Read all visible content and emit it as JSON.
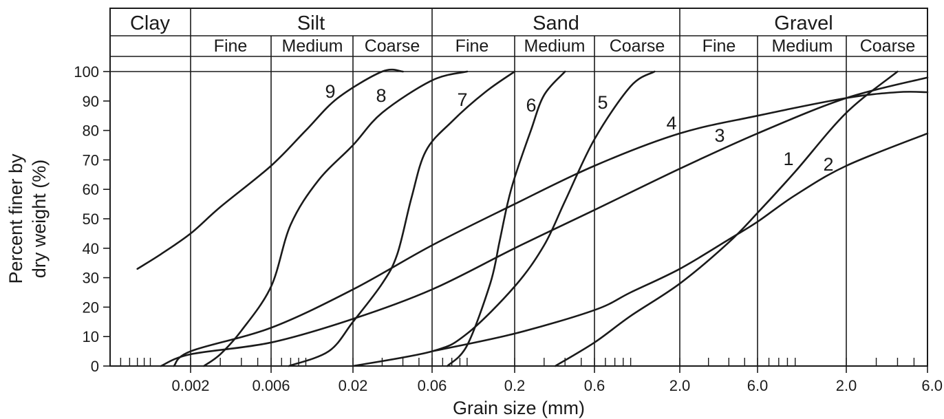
{
  "chart_data": {
    "type": "line",
    "title": "",
    "xlabel": "Grain size (mm)",
    "ylabel_lines": [
      "Percent finer by",
      "dry weight (%)"
    ],
    "y_ticks": [
      "0",
      "10",
      "20",
      "30",
      "40",
      "50",
      "60",
      "70",
      "80",
      "90",
      "100"
    ],
    "ylim": [
      0,
      100
    ],
    "x_ticks": [
      "0.002",
      "0.006",
      "0.02",
      "0.06",
      "0.2",
      "0.6",
      "2.0",
      "6.0",
      "2.0",
      "6.0"
    ],
    "header": {
      "classes": [
        "Clay",
        "Silt",
        "Sand",
        "Gravel"
      ],
      "subclasses": [
        "Fine",
        "Medium",
        "Coarse",
        "Fine",
        "Medium",
        "Coarse",
        "Fine",
        "Medium",
        "Coarse"
      ]
    },
    "series": [
      {
        "name": "1",
        "points": [
          [
            0.35,
            0
          ],
          [
            0.6,
            8
          ],
          [
            1.0,
            17
          ],
          [
            2.0,
            28
          ],
          [
            4.0,
            42
          ],
          [
            6.0,
            52
          ],
          [
            10,
            66
          ],
          [
            20,
            86
          ],
          [
            40,
            100
          ]
        ]
      },
      {
        "name": "2",
        "points": [
          [
            0.06,
            5
          ],
          [
            0.2,
            11
          ],
          [
            0.6,
            19
          ],
          [
            1.0,
            25
          ],
          [
            2.0,
            33
          ],
          [
            4.0,
            43
          ],
          [
            6.0,
            49
          ],
          [
            10,
            58
          ],
          [
            20,
            68
          ],
          [
            60,
            79
          ]
        ]
      },
      {
        "name": "3",
        "points": [
          [
            0.0015,
            0
          ],
          [
            0.002,
            5
          ],
          [
            0.006,
            13
          ],
          [
            0.02,
            26
          ],
          [
            0.06,
            41
          ],
          [
            0.2,
            55
          ],
          [
            0.6,
            68
          ],
          [
            2.0,
            79
          ],
          [
            6.0,
            85
          ],
          [
            20,
            91
          ],
          [
            40,
            93
          ],
          [
            60,
            93
          ]
        ]
      },
      {
        "name": "4",
        "points": [
          [
            0.0012,
            0
          ],
          [
            0.002,
            4
          ],
          [
            0.006,
            8
          ],
          [
            0.02,
            16
          ],
          [
            0.06,
            26
          ],
          [
            0.2,
            40
          ],
          [
            0.6,
            53
          ],
          [
            2.0,
            67
          ],
          [
            6.0,
            79
          ],
          [
            20,
            91
          ],
          [
            60,
            98
          ]
        ]
      },
      {
        "name": "5",
        "points": [
          [
            0.02,
            0
          ],
          [
            0.06,
            5
          ],
          [
            0.1,
            11
          ],
          [
            0.2,
            27
          ],
          [
            0.3,
            41
          ],
          [
            0.4,
            56
          ],
          [
            0.6,
            77
          ],
          [
            1.0,
            95
          ],
          [
            1.4,
            100
          ]
        ]
      },
      {
        "name": "6",
        "points": [
          [
            0.075,
            0
          ],
          [
            0.1,
            7
          ],
          [
            0.14,
            28
          ],
          [
            0.16,
            42
          ],
          [
            0.18,
            55
          ],
          [
            0.2,
            64
          ],
          [
            0.25,
            80
          ],
          [
            0.3,
            92
          ],
          [
            0.4,
            100
          ]
        ]
      },
      {
        "name": "7",
        "points": [
          [
            0.0078,
            0
          ],
          [
            0.014,
            5
          ],
          [
            0.02,
            15
          ],
          [
            0.03,
            28
          ],
          [
            0.037,
            38
          ],
          [
            0.045,
            57
          ],
          [
            0.055,
            73
          ],
          [
            0.08,
            83
          ],
          [
            0.13,
            93
          ],
          [
            0.2,
            100
          ]
        ]
      },
      {
        "name": "8",
        "points": [
          [
            0.0024,
            0
          ],
          [
            0.003,
            4
          ],
          [
            0.004,
            12
          ],
          [
            0.006,
            27
          ],
          [
            0.008,
            48
          ],
          [
            0.012,
            63
          ],
          [
            0.02,
            75
          ],
          [
            0.03,
            86
          ],
          [
            0.06,
            97
          ],
          [
            0.1,
            100
          ]
        ]
      },
      {
        "name": "9",
        "points": [
          [
            0.0008,
            33
          ],
          [
            0.0012,
            38
          ],
          [
            0.002,
            45
          ],
          [
            0.003,
            54
          ],
          [
            0.006,
            68
          ],
          [
            0.01,
            80
          ],
          [
            0.016,
            91
          ],
          [
            0.03,
            100
          ],
          [
            0.04,
            100
          ]
        ]
      }
    ]
  }
}
